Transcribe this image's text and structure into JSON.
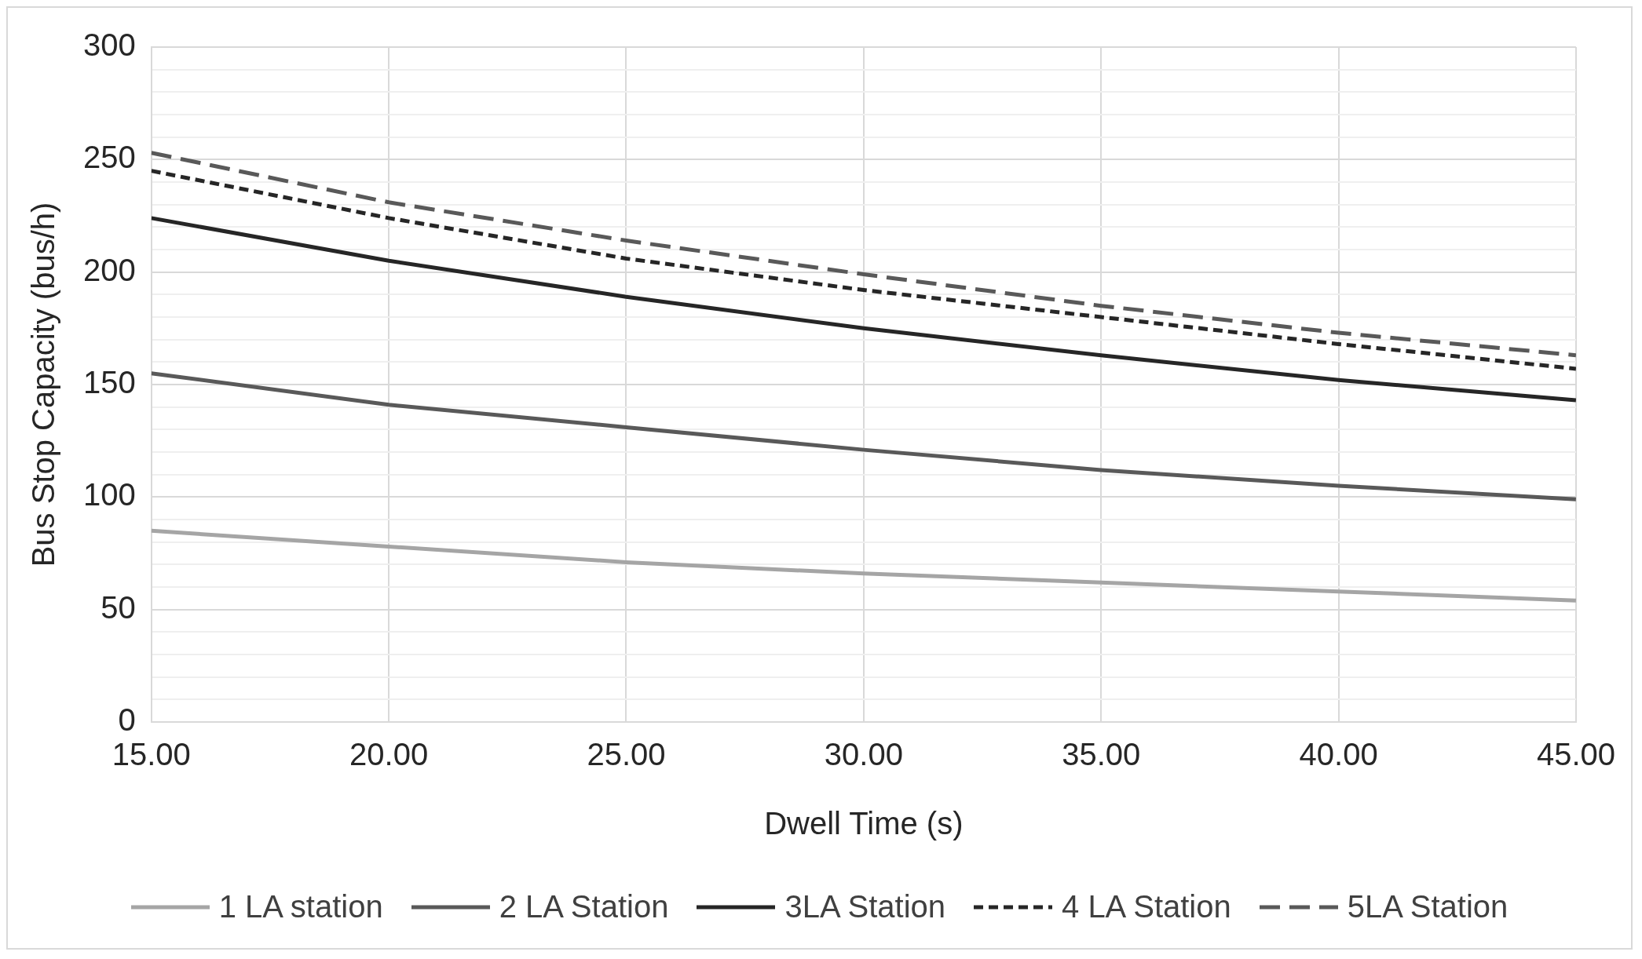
{
  "chart_data": {
    "type": "line",
    "xlabel": "Dwell Time (s)",
    "ylabel": "Bus Stop Capacity (bus/h)",
    "x": [
      15,
      20,
      25,
      30,
      35,
      40,
      45
    ],
    "series": [
      {
        "name": "1 LA station",
        "color": "#a5a5a5",
        "line_style": "solid",
        "values": [
          85,
          78,
          71,
          66,
          62,
          58,
          54
        ]
      },
      {
        "name": "2 LA Station",
        "color": "#595959",
        "line_style": "solid",
        "values": [
          155,
          141,
          131,
          121,
          112,
          105,
          99
        ]
      },
      {
        "name": "3LA Station",
        "color": "#262626",
        "line_style": "solid",
        "values": [
          224,
          205,
          189,
          175,
          163,
          152,
          143
        ]
      },
      {
        "name": "4 LA Station",
        "color": "#262626",
        "line_style": "dotted",
        "values": [
          245,
          224,
          206,
          192,
          180,
          168,
          157
        ]
      },
      {
        "name": "5LA Station",
        "color": "#595959",
        "line_style": "dashed",
        "values": [
          253,
          231,
          214,
          199,
          185,
          173,
          163
        ]
      }
    ],
    "xlim": [
      15,
      45
    ],
    "xticks": [
      {
        "value": 15,
        "label": "15.00"
      },
      {
        "value": 20,
        "label": "20.00"
      },
      {
        "value": 25,
        "label": "25.00"
      },
      {
        "value": 30,
        "label": "30.00"
      },
      {
        "value": 35,
        "label": "35.00"
      },
      {
        "value": 40,
        "label": "40.00"
      },
      {
        "value": 45,
        "label": "45.00"
      }
    ],
    "ylim": [
      0,
      300
    ],
    "yticks": [
      0,
      {
        "value": 10,
        "label": null
      },
      {
        "value": 20,
        "label": null
      },
      {
        "value": 30,
        "label": null
      },
      {
        "value": 40,
        "label": null
      },
      50,
      {
        "value": 60,
        "label": null
      },
      {
        "value": 70,
        "label": null
      },
      {
        "value": 80,
        "label": null
      },
      {
        "value": 90,
        "label": null
      },
      100,
      {
        "value": 110,
        "label": null
      },
      {
        "value": 120,
        "label": null
      },
      {
        "value": 130,
        "label": null
      },
      {
        "value": 140,
        "label": null
      },
      150,
      {
        "value": 160,
        "label": null
      },
      {
        "value": 170,
        "label": null
      },
      {
        "value": 180,
        "label": null
      },
      {
        "value": 190,
        "label": null
      },
      200,
      {
        "value": 210,
        "label": null
      },
      {
        "value": 220,
        "label": null
      },
      {
        "value": 230,
        "label": null
      },
      {
        "value": 240,
        "label": null
      },
      250,
      {
        "value": 260,
        "label": null
      },
      {
        "value": 270,
        "label": null
      },
      {
        "value": 280,
        "label": null
      },
      {
        "value": 290,
        "label": null
      },
      300
    ],
    "grid": true,
    "legend": "bottom",
    "marker": "none"
  }
}
